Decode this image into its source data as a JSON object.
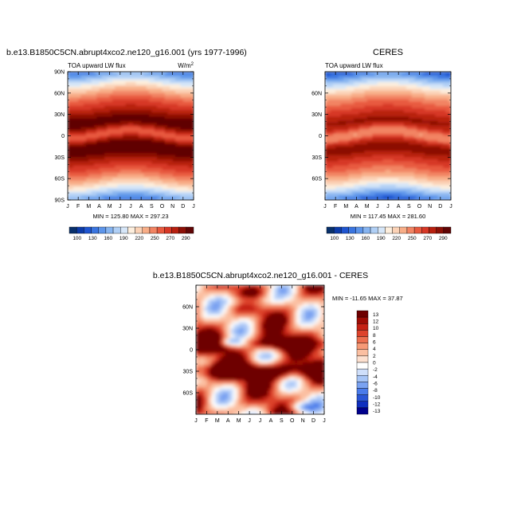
{
  "chart_data": [
    {
      "type": "heatmap",
      "title": "b.e13.B1850C5CN.abrupt4xco2.ne120_g16.001 (yrs 1977-1996)",
      "left_label": "TOA upward LW flux",
      "units_base": "W/m",
      "units_exp": "2",
      "stats": "MIN = 125.80 MAX = 297.23",
      "min": 125.8,
      "max": 297.23,
      "months": [
        "J",
        "F",
        "M",
        "A",
        "M",
        "J",
        "J",
        "A",
        "S",
        "O",
        "N",
        "D",
        "J"
      ],
      "lat_ticks": [
        "90N",
        "60N",
        "30N",
        "0",
        "30S",
        "60S",
        "90S"
      ],
      "lat_range": [
        -90,
        90
      ],
      "colorbar_labels": [
        "100",
        "130",
        "160",
        "190",
        "220",
        "250",
        "270",
        "290"
      ]
    },
    {
      "type": "heatmap",
      "title": "CERES",
      "left_label": "TOA upward LW flux",
      "stats": "MIN = 117.45 MAX = 281.60",
      "min": 117.45,
      "max": 281.6,
      "months": [
        "J",
        "F",
        "M",
        "A",
        "M",
        "J",
        "J",
        "A",
        "S",
        "O",
        "N",
        "D",
        "J"
      ],
      "lat_ticks": [
        "60N",
        "30N",
        "0",
        "30S",
        "60S"
      ],
      "lat_range": [
        -90,
        90
      ],
      "colorbar_labels": [
        "100",
        "130",
        "160",
        "190",
        "220",
        "250",
        "270",
        "290"
      ]
    },
    {
      "type": "heatmap",
      "title": "b.e13.B1850C5CN.abrupt4xco2.ne120_g16.001 - CERES",
      "stats": "MIN = -11.65 MAX =  37.87",
      "min": -11.65,
      "max": 37.87,
      "months": [
        "J",
        "F",
        "M",
        "A",
        "M",
        "J",
        "J",
        "A",
        "S",
        "O",
        "N",
        "D",
        "J"
      ],
      "lat_ticks": [
        "60N",
        "30N",
        "0",
        "30S",
        "60S"
      ],
      "lat_range": [
        -90,
        90
      ],
      "colorbar_labels": [
        "13",
        "12",
        "10",
        "8",
        "6",
        "4",
        "2",
        "0",
        "-2",
        "-4",
        "-6",
        "-8",
        "-10",
        "-12",
        "-13"
      ]
    }
  ],
  "colors": {
    "abs_scale": [
      "#08306b",
      "#0c3ba8",
      "#1f55d0",
      "#3a75e0",
      "#5d95ea",
      "#86b4f0",
      "#b0cff5",
      "#d6e6f8",
      "#fdeedd",
      "#fbd2b6",
      "#f8ae88",
      "#f28463",
      "#e85a3f",
      "#d73826",
      "#b8200f",
      "#8c1006",
      "#600505"
    ],
    "diff_scale": [
      "#00008c",
      "#0f2fbf",
      "#2a56d6",
      "#4a7bea",
      "#7aa2f1",
      "#a7c5f6",
      "#cfdffa",
      "#ffffff",
      "#fde0cf",
      "#fbbfa1",
      "#f69a77",
      "#ec6f4f",
      "#dd432c",
      "#c52114",
      "#9e0c05",
      "#6e0000"
    ]
  }
}
